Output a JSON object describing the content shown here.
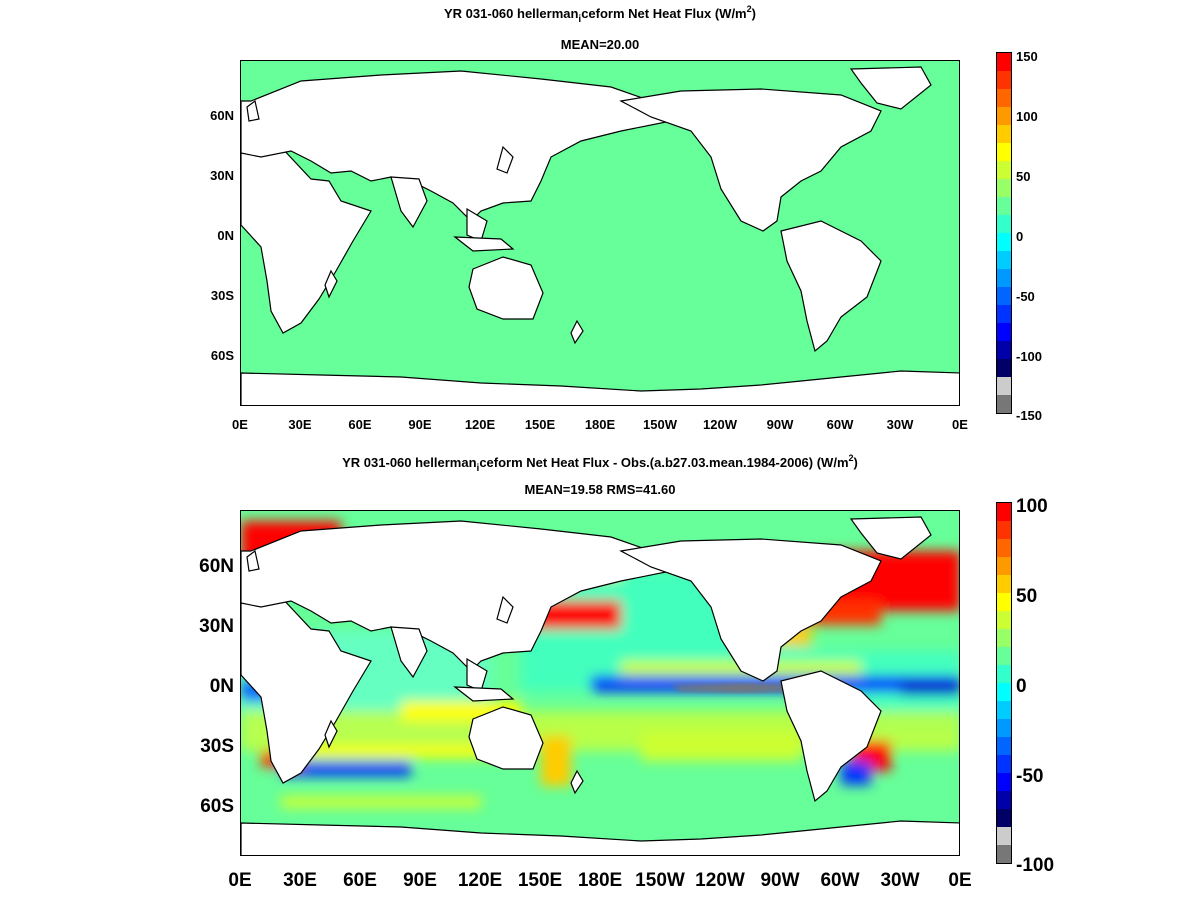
{
  "panels": [
    {
      "title_main": "YR 031-060 hellerman",
      "title_sub": "i",
      "title_rest": "ceform  Net Heat Flux (W/m",
      "title_sup": "2",
      "title_close": ")",
      "stats": "MEAN=20.00",
      "lat_labels": [
        "60N",
        "30N",
        "0N",
        "30S",
        "60S"
      ],
      "lon_labels": [
        "0E",
        "30E",
        "60E",
        "90E",
        "120E",
        "150E",
        "180E",
        "150W",
        "120W",
        "90W",
        "60W",
        "30W",
        "0E"
      ],
      "colorbar_labels": [
        "150",
        "100",
        "50",
        "0",
        "-50",
        "-100",
        "-150"
      ]
    },
    {
      "title_main": "YR 031-060 hellerman",
      "title_sub": "i",
      "title_rest": "ceform  Net Heat Flux - Obs.(a.b27.03.mean.1984-2006) (W/m",
      "title_sup": "2",
      "title_close": ")",
      "stats": "MEAN=19.58 RMS=41.60",
      "lat_labels": [
        "60N",
        "30N",
        "0N",
        "30S",
        "60S"
      ],
      "lon_labels": [
        "0E",
        "30E",
        "60E",
        "90E",
        "120E",
        "150E",
        "180E",
        "150W",
        "120W",
        "90W",
        "60W",
        "30W",
        "0E"
      ],
      "colorbar_labels": [
        "100",
        "50",
        "0",
        "-50",
        "-100"
      ]
    }
  ],
  "colors": {
    "land": "#ffffff",
    "ocean_uniform": "#66ff99",
    "colorbar": [
      "#ff0000",
      "#ff3300",
      "#ff6600",
      "#ff9900",
      "#ffcc00",
      "#ffff00",
      "#ccff33",
      "#99ff66",
      "#66ff99",
      "#33ffcc",
      "#00ffff",
      "#00ccff",
      "#0099ff",
      "#0066ff",
      "#0033ff",
      "#0000ff",
      "#0000aa",
      "#000066",
      "#cccccc",
      "#777777"
    ]
  }
}
